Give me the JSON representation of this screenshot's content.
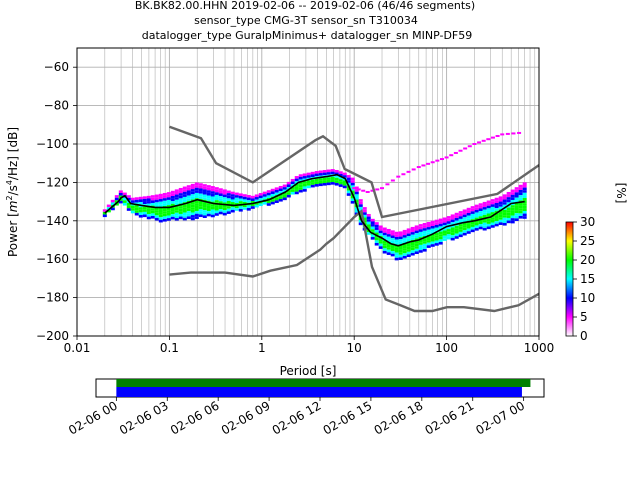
{
  "header": {
    "line1": "BK.BK82.00.HHN   2019-02-06 -- 2019-02-06  (46/46 segments)",
    "line2": "sensor_type CMG-3T sensor_sn T310034",
    "line3": "datalogger_type GuralpMinimus+ datalogger_sn MINP-DF59"
  },
  "chart_data": [
    {
      "type": "heatmap",
      "title": "BK.BK82.00.HHN   2019-02-06 -- 2019-02-06  (46/46 segments)",
      "xlabel": "Period [s]",
      "ylabel": "Power [m²/s⁴/Hz] [dB]",
      "ylabel_parts": {
        "pre": "Power [",
        "m": "m",
        "m_exp": "2",
        "mid": "/s",
        "s_exp": "4",
        "post": "/Hz] [dB]"
      },
      "x_scale": "log",
      "xlim": [
        0.01,
        1000
      ],
      "ylim": [
        -200,
        -50
      ],
      "x_ticks": [
        {
          "value": 0.01,
          "label": "0.01"
        },
        {
          "value": 0.1,
          "label": "0.1"
        },
        {
          "value": 1,
          "label": "1"
        },
        {
          "value": 10,
          "label": "10"
        },
        {
          "value": 100,
          "label": "100"
        },
        {
          "value": 1000,
          "label": "1000"
        }
      ],
      "y_ticks": [
        {
          "value": -60,
          "label": "−60"
        },
        {
          "value": -80,
          "label": "−80"
        },
        {
          "value": -100,
          "label": "−100"
        },
        {
          "value": -120,
          "label": "−120"
        },
        {
          "value": -140,
          "label": "−140"
        },
        {
          "value": -160,
          "label": "−160"
        },
        {
          "value": -180,
          "label": "−180"
        },
        {
          "value": -200,
          "label": "−200"
        }
      ],
      "grid": true,
      "colorbar": {
        "label": "[%]",
        "range": [
          0,
          30
        ],
        "ticks": [
          {
            "value": 0,
            "label": "0"
          },
          {
            "value": 5,
            "label": "5"
          },
          {
            "value": 10,
            "label": "10"
          },
          {
            "value": 15,
            "label": "15"
          },
          {
            "value": 20,
            "label": "20"
          },
          {
            "value": 25,
            "label": "25"
          },
          {
            "value": 30,
            "label": "30"
          }
        ],
        "colormap": [
          "#ffffff",
          "#ff00ff",
          "#0000ff",
          "#00ffff",
          "#00ff00",
          "#ffff00",
          "#ff0000"
        ]
      },
      "noise_models": {
        "color": "#666666",
        "high": [
          [
            0.1,
            -91
          ],
          [
            0.22,
            -97
          ],
          [
            0.32,
            -110
          ],
          [
            0.8,
            -120
          ],
          [
            3.8,
            -98
          ],
          [
            4.6,
            -96
          ],
          [
            6.3,
            -101
          ],
          [
            7.9,
            -113
          ],
          [
            15.4,
            -120
          ],
          [
            20,
            -138
          ],
          [
            354.8,
            -126
          ],
          [
            1000,
            -111
          ]
        ],
        "low": [
          [
            0.1,
            -168
          ],
          [
            0.17,
            -167
          ],
          [
            0.4,
            -167
          ],
          [
            0.8,
            -169
          ],
          [
            1.24,
            -166
          ],
          [
            2.4,
            -163
          ],
          [
            4.3,
            -155
          ],
          [
            5,
            -152
          ],
          [
            6,
            -149
          ],
          [
            10,
            -138
          ],
          [
            12,
            -135
          ],
          [
            15.6,
            -164
          ],
          [
            21.9,
            -181
          ],
          [
            31.6,
            -184
          ],
          [
            45,
            -187
          ],
          [
            70,
            -187
          ],
          [
            101,
            -185
          ],
          [
            154,
            -185
          ],
          [
            328,
            -187
          ],
          [
            600,
            -184
          ],
          [
            1000,
            -178
          ]
        ]
      },
      "mean_curve": {
        "color": "#000000",
        "points": [
          [
            0.02,
            -136
          ],
          [
            0.025,
            -132
          ],
          [
            0.028,
            -130
          ],
          [
            0.03,
            -128
          ],
          [
            0.033,
            -127
          ],
          [
            0.038,
            -131
          ],
          [
            0.05,
            -132
          ],
          [
            0.07,
            -133
          ],
          [
            0.1,
            -133
          ],
          [
            0.15,
            -131
          ],
          [
            0.2,
            -129
          ],
          [
            0.3,
            -131
          ],
          [
            0.5,
            -132
          ],
          [
            0.8,
            -131
          ],
          [
            1.2,
            -129
          ],
          [
            1.8,
            -125
          ],
          [
            2.5,
            -120
          ],
          [
            3.5,
            -118
          ],
          [
            5,
            -117
          ],
          [
            6.5,
            -116
          ],
          [
            8,
            -118
          ],
          [
            10,
            -128
          ],
          [
            12,
            -140
          ],
          [
            15,
            -146
          ],
          [
            20,
            -149
          ],
          [
            25,
            -152
          ],
          [
            30,
            -153
          ],
          [
            40,
            -151
          ],
          [
            50,
            -150
          ],
          [
            70,
            -147
          ],
          [
            100,
            -143
          ],
          [
            150,
            -141
          ],
          [
            200,
            -140
          ],
          [
            300,
            -138
          ],
          [
            500,
            -131
          ],
          [
            700,
            -130
          ]
        ]
      },
      "density_band": {
        "points": [
          [
            0.02,
            -137,
            -134
          ],
          [
            0.03,
            -130,
            -124
          ],
          [
            0.04,
            -136,
            -128
          ],
          [
            0.06,
            -138,
            -127
          ],
          [
            0.08,
            -140,
            -126
          ],
          [
            0.1,
            -139,
            -125
          ],
          [
            0.15,
            -139,
            -122
          ],
          [
            0.2,
            -138,
            -120
          ],
          [
            0.3,
            -137,
            -122
          ],
          [
            0.5,
            -135,
            -125
          ],
          [
            0.8,
            -133,
            -127
          ],
          [
            1.2,
            -131,
            -124
          ],
          [
            1.8,
            -128,
            -121
          ],
          [
            2.5,
            -125,
            -116
          ],
          [
            4,
            -121,
            -114
          ],
          [
            6,
            -120,
            -113
          ],
          [
            8,
            -122,
            -115
          ],
          [
            10,
            -132,
            -118
          ],
          [
            12,
            -143,
            -130
          ],
          [
            15,
            -148,
            -138
          ],
          [
            20,
            -155,
            -143
          ],
          [
            30,
            -160,
            -146
          ],
          [
            50,
            -156,
            -142
          ],
          [
            100,
            -150,
            -138
          ],
          [
            200,
            -145,
            -132
          ],
          [
            400,
            -142,
            -127
          ],
          [
            700,
            -138,
            -120
          ]
        ],
        "sparse_upper": [
          [
            10,
            -123
          ],
          [
            14,
            -125
          ],
          [
            20,
            -123
          ],
          [
            30,
            -117
          ],
          [
            50,
            -112
          ],
          [
            100,
            -107
          ],
          [
            200,
            -100
          ],
          [
            400,
            -95
          ],
          [
            700,
            -94
          ]
        ]
      }
    },
    {
      "type": "timeline",
      "x_ticks": [
        "02-06 00",
        "02-06 03",
        "02-06 06",
        "02-06 09",
        "02-06 12",
        "02-06 15",
        "02-06 18",
        "02-06 21",
        "02-07 00"
      ],
      "x_hours_range": [
        -1.2,
        25.2
      ],
      "bars": [
        {
          "name": "data",
          "color": "#008000",
          "start_hour": 0,
          "end_hour": 24.4
        },
        {
          "name": "psd",
          "color": "#0000ff",
          "start_hour": 0,
          "end_hour": 23.9
        }
      ]
    }
  ]
}
